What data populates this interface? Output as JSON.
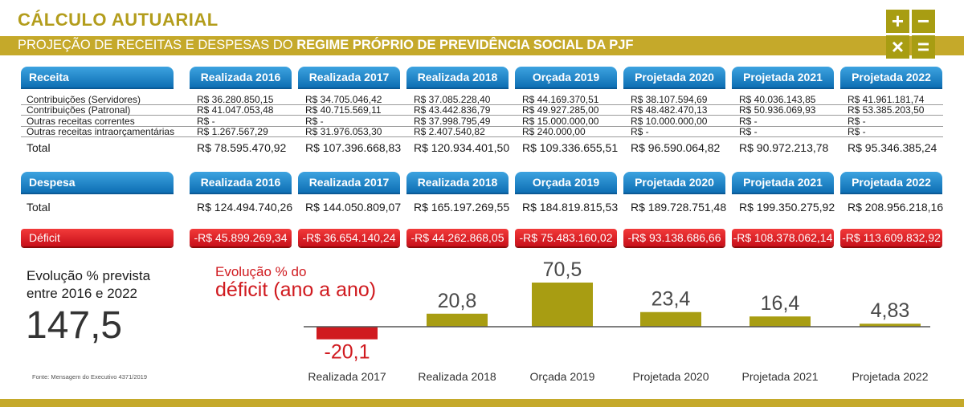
{
  "header": {
    "title": "CÁLCULO AUTUARIAL",
    "subtitle_normal": "PROJEÇÃO DE RECEITAS E DESPESAS DO ",
    "subtitle_bold": "REGIME PRÓPRIO DE PREVIDÊNCIA SOCIAL DA PJF",
    "calc_symbols": [
      "+",
      "−",
      "×",
      "="
    ]
  },
  "colors": {
    "gold": "#c5a92a",
    "olive": "#a89d12",
    "blue": "#0e6fb4",
    "red": "#d01a1f"
  },
  "columns": [
    "Realizada 2016",
    "Realizada 2017",
    "Realizada 2018",
    "Orçada 2019",
    "Projetada 2020",
    "Projetada 2021",
    "Projetada 2022"
  ],
  "receita": {
    "label": "Receita",
    "row_labels": [
      "Contribuições (Servidores)",
      "Contribuições (Patronal)",
      "Outras receitas correntes",
      "Outras receitas intraorçamentárias"
    ],
    "rows": [
      [
        "R$ 36.280.850,15",
        "R$ 34.705.046,42",
        "R$ 37.085.228,40",
        "R$ 44.169.370,51",
        "R$ 38.107.594,69",
        "R$ 40.036.143,85",
        "R$ 41.961.181,74"
      ],
      [
        "R$ 41.047.053,48",
        "R$ 40.715.569,11",
        "R$ 43.442.836,79",
        "R$ 49.927.285,00",
        "R$ 48.482.470,13",
        "R$ 50.936.069,93",
        "R$ 53.385.203,50"
      ],
      [
        "R$ -",
        "R$ -",
        "R$ 37.998.795,49",
        "R$ 15.000.000,00",
        "R$ 10.000.000,00",
        "R$ -",
        "R$ -"
      ],
      [
        "R$ 1.267.567,29",
        "R$ 31.976.053,30",
        "R$ 2.407.540,82",
        "R$ 240.000,00",
        "R$ -",
        "R$ -",
        "R$ -"
      ]
    ],
    "total_label": "Total",
    "totals": [
      "R$ 78.595.470,92",
      "R$ 107.396.668,83",
      "R$ 120.934.401,50",
      "R$ 109.336.655,51",
      "R$ 96.590.064,82",
      "R$ 90.972.213,78",
      "R$ 95.346.385,24"
    ]
  },
  "despesa": {
    "label": "Despesa",
    "total_label": "Total",
    "totals": [
      "R$ 124.494.740,26",
      "R$ 144.050.809,07",
      "R$ 165.197.269,55",
      "R$ 184.819.815,53",
      "R$ 189.728.751,48",
      "R$ 199.350.275,92",
      "R$ 208.956.218,16"
    ]
  },
  "deficit": {
    "label": "Déficit",
    "values": [
      "-R$ 45.899.269,34",
      "-R$ 36.654.140,24",
      "-R$ 44.262.868,05",
      "-R$ 75.483.160,02",
      "-R$ 93.138.686,66",
      "-R$ 108.378.062,14",
      "-R$ 113.609.832,92"
    ]
  },
  "evolution": {
    "label_line1": "Evolução % prevista",
    "label_line2": "entre 2016 e 2022",
    "value": "147,5"
  },
  "source": "Fonte: Mensagem do Executivo 4371/2019",
  "chart_data": {
    "type": "bar",
    "title_line1": "Evolução % do",
    "title_line2": "déficit (ano a ano)",
    "categories": [
      "Realizada 2017",
      "Realizada 2018",
      "Orçada 2019",
      "Projetada 2020",
      "Projetada 2021",
      "Projetada 2022"
    ],
    "values": [
      -20.1,
      20.8,
      70.5,
      23.4,
      16.4,
      4.83
    ],
    "value_labels": [
      "-20,1",
      "20,8",
      "70,5",
      "23,4",
      "16,4",
      "4,83"
    ],
    "ylim": [
      -20.1,
      70.5
    ],
    "positive_color": "#a89d12",
    "negative_color": "#d01a1f"
  }
}
